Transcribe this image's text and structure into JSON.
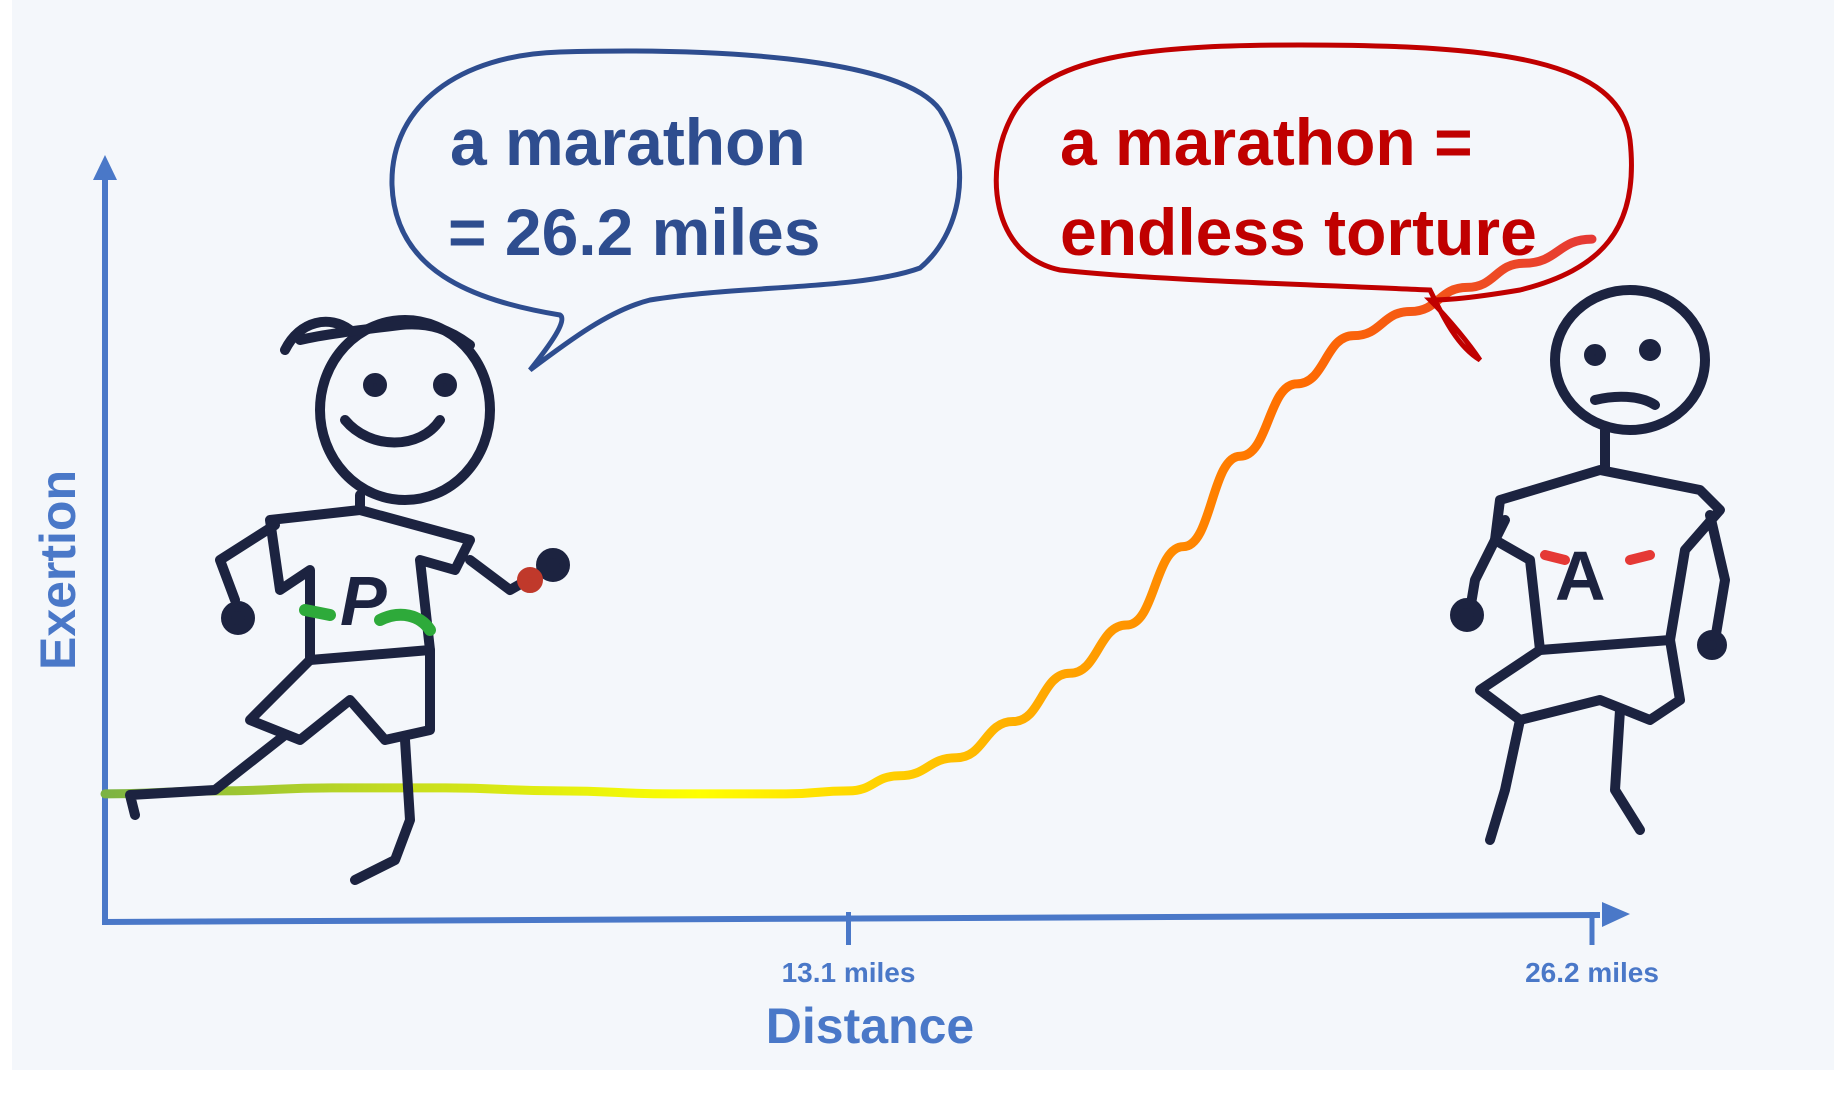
{
  "chart_data": {
    "type": "line",
    "xlabel": "Distance",
    "ylabel": "Exertion",
    "x_unit": "miles",
    "xlim": [
      0,
      26.2
    ],
    "xticks": [
      {
        "value": 13.1,
        "label": "13.1 miles"
      },
      {
        "value": 26.2,
        "label": "26.2 miles"
      }
    ],
    "series": [
      {
        "x": [
          0,
          2,
          4,
          6,
          8,
          10,
          12,
          13.1,
          14,
          15,
          16,
          17,
          18,
          19,
          20,
          21,
          22,
          23,
          24,
          25,
          26.2
        ],
        "y": [
          0.04,
          0.045,
          0.05,
          0.05,
          0.045,
          0.04,
          0.04,
          0.045,
          0.07,
          0.1,
          0.16,
          0.24,
          0.32,
          0.45,
          0.6,
          0.72,
          0.8,
          0.84,
          0.88,
          0.92,
          0.96
        ],
        "color_gradient": [
          "#7cb342",
          "#c6dd1f",
          "#ffff00",
          "#ffb300",
          "#ff6d00",
          "#e53935"
        ]
      }
    ],
    "annotations": [
      {
        "lines": [
          "a marathon",
          "= 26.2 miles"
        ],
        "color": "#2e4d8f"
      },
      {
        "lines": [
          "a marathon =",
          "endless torture"
        ],
        "color": "#c00000"
      }
    ],
    "characters": [
      {
        "name": "happy-runner",
        "shirt_letter": "P",
        "accent": "#2eaa3a"
      },
      {
        "name": "tired-runner",
        "shirt_letter": "A",
        "accent": "#e53935"
      }
    ],
    "axis_color": "#4a78c8",
    "background": "#f4f7fb"
  }
}
